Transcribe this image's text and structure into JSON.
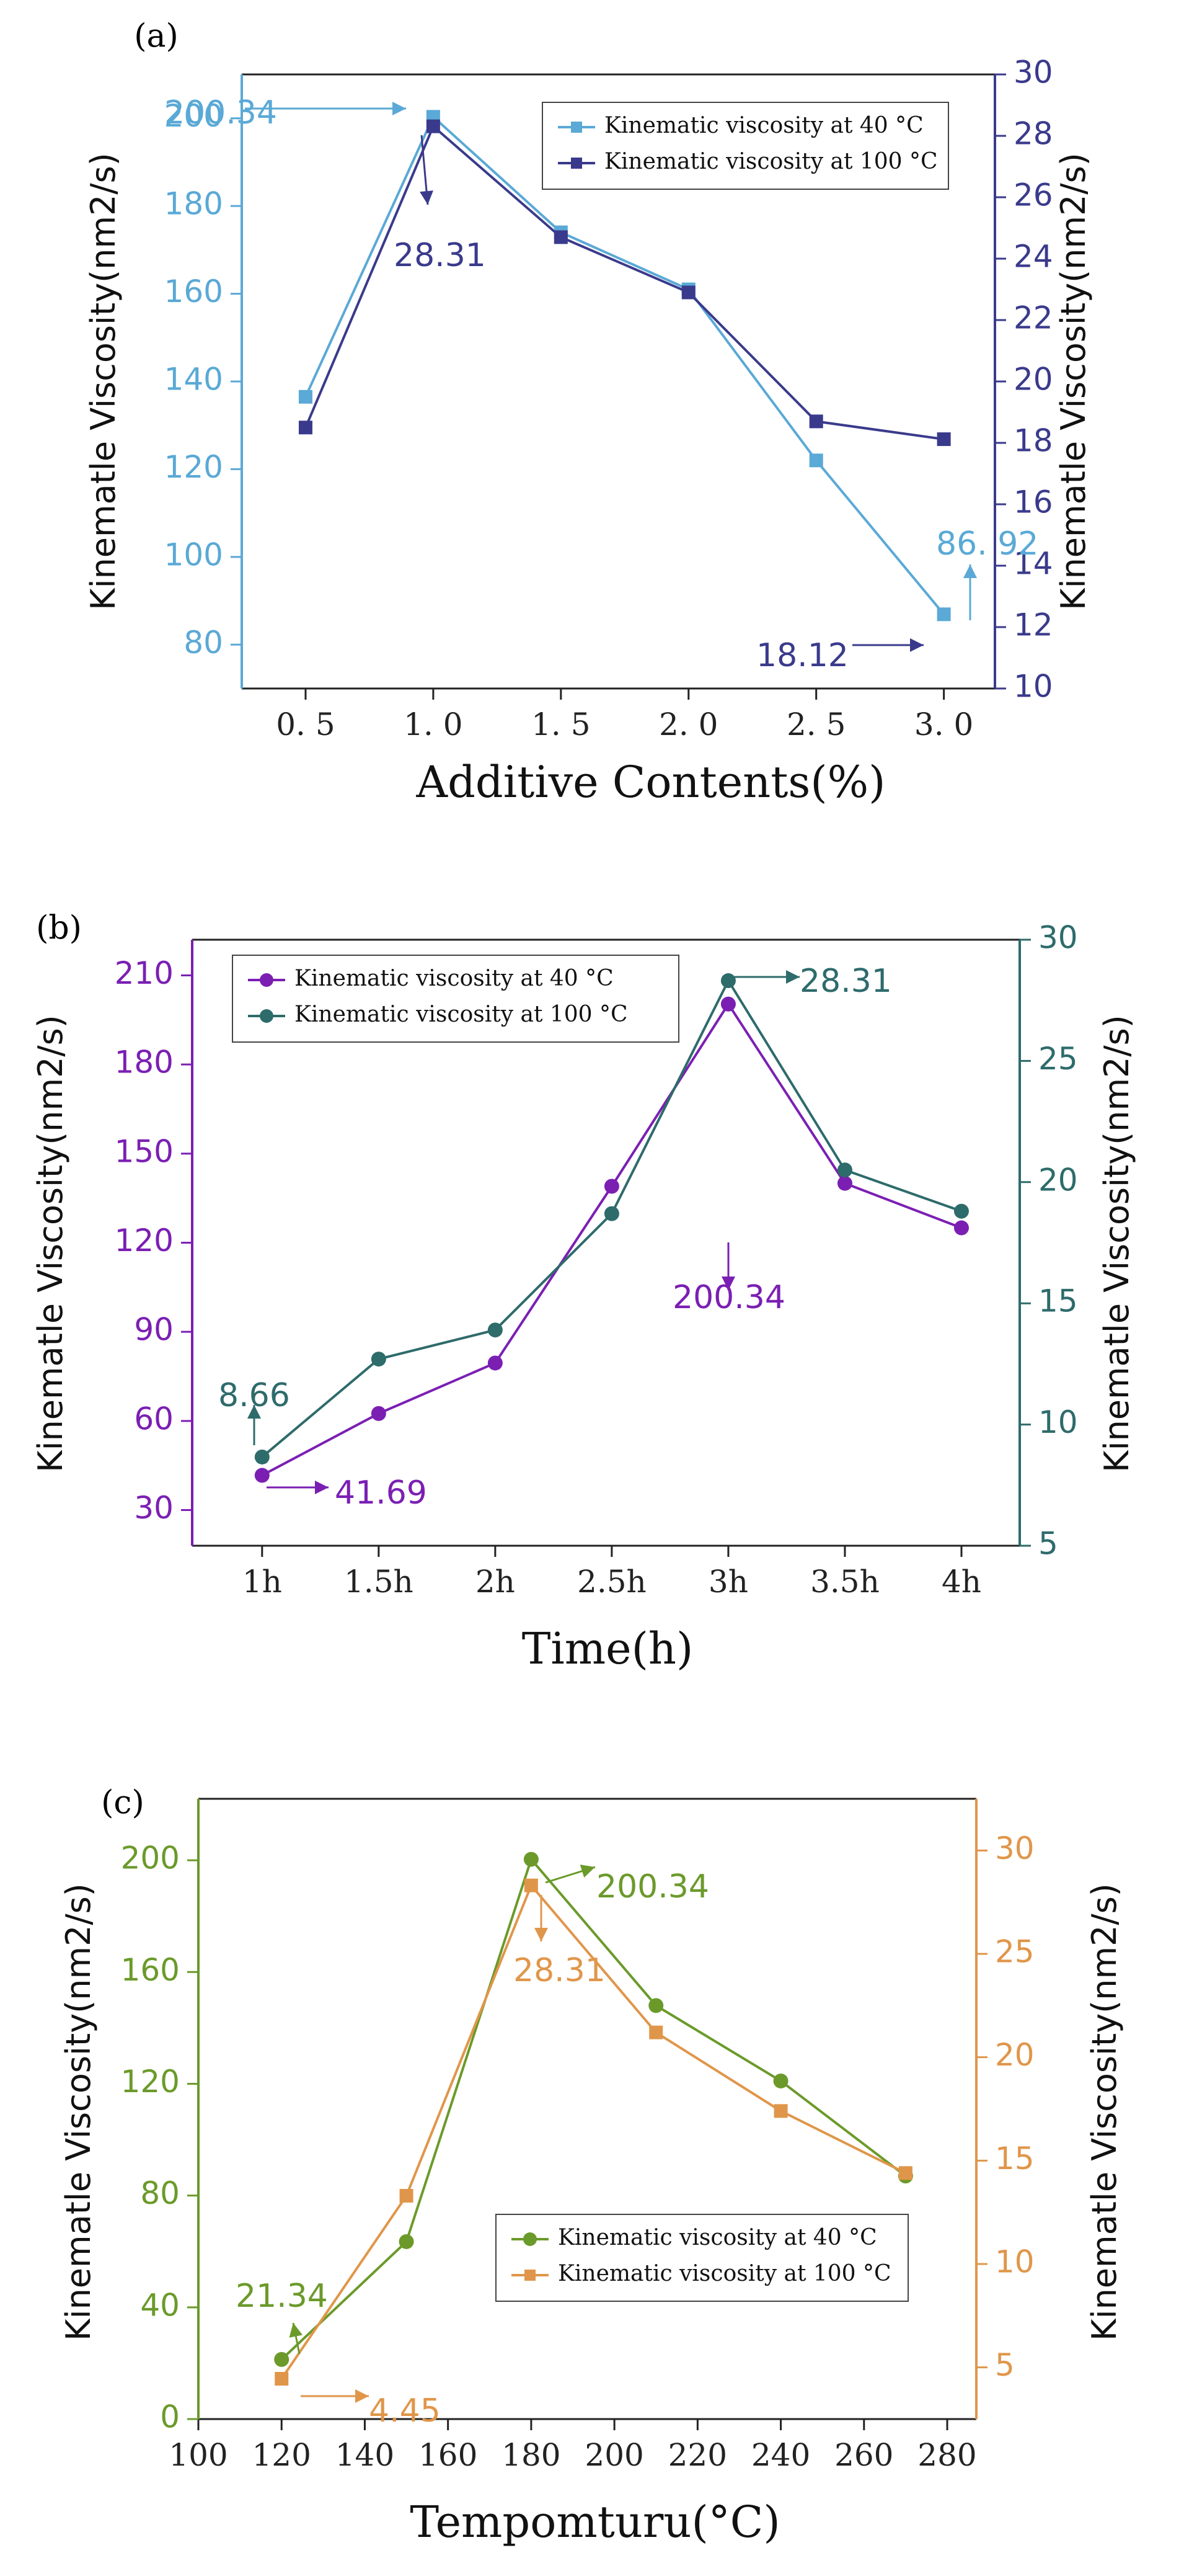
{
  "chart_data": [
    {
      "panel": "(a)",
      "type": "line",
      "xlabel": "Additive Contents(%)",
      "categories": [
        "0. 5",
        "1. 0",
        "1. 5",
        "2. 0",
        "2. 5",
        "3. 0"
      ],
      "x": [
        0.5,
        1.0,
        1.5,
        2.0,
        2.5,
        3.0
      ],
      "xlim": [
        0.25,
        3.2
      ],
      "ylabel_left": "Kinematle Viscosity(nm2/s)",
      "ylabel_right": "Kinematle Viscosity(nm2/s)",
      "ylim_left": [
        70,
        210
      ],
      "ylim_right": [
        10,
        30
      ],
      "yticks_left": [
        80,
        100,
        120,
        140,
        160,
        180,
        200
      ],
      "yticks_right": [
        10,
        12,
        14,
        16,
        18,
        20,
        22,
        24,
        26,
        28,
        30
      ],
      "left_color": "#5aa9d6",
      "right_color": "#3a3a8c",
      "series": [
        {
          "name": "Kinematic viscosity at 40 °C",
          "axis": "left",
          "marker": "square",
          "color": "#5aa9d6",
          "values": [
            136.5,
            200.34,
            174,
            161,
            122,
            86.92
          ]
        },
        {
          "name": "Kinematic viscosity at 100 °C",
          "axis": "right",
          "marker": "square",
          "color": "#3a3a8c",
          "values": [
            18.5,
            28.31,
            24.7,
            22.9,
            18.7,
            18.12
          ]
        }
      ],
      "legend_position": "top-right",
      "annotations": [
        "200.34",
        "28.31",
        "86. 92",
        "18.12"
      ]
    },
    {
      "panel": "(b)",
      "type": "line",
      "xlabel": "Time(h)",
      "categories": [
        "1h",
        "1.5h",
        "2h",
        "2.5h",
        "3h",
        "3.5h",
        "4h"
      ],
      "x": [
        1,
        1.5,
        2,
        2.5,
        3,
        3.5,
        4
      ],
      "xlim": [
        0.7,
        4.25
      ],
      "ylabel_left": "Kinematle Viscosity(nm2/s)",
      "ylabel_right": "Kinematle Viscosity(nm2/s)",
      "ylim_left": [
        18,
        222
      ],
      "ylim_right": [
        5,
        30
      ],
      "yticks_left": [
        30,
        60,
        90,
        120,
        150,
        180,
        210
      ],
      "yticks_right": [
        5,
        10,
        15,
        20,
        25,
        30
      ],
      "left_color": "#7b1fb3",
      "right_color": "#2e6b6b",
      "series": [
        {
          "name": "Kinematic viscosity at 40 °C",
          "axis": "left",
          "marker": "circle",
          "color": "#7b1fb3",
          "values": [
            41.69,
            62.5,
            79.5,
            139,
            200.34,
            140,
            125
          ]
        },
        {
          "name": "Kinematic viscosity at 100 °C",
          "axis": "right",
          "marker": "circle",
          "color": "#2e6b6b",
          "values": [
            8.66,
            12.7,
            13.9,
            18.7,
            28.31,
            20.5,
            18.8
          ]
        }
      ],
      "legend_position": "top-left",
      "annotations": [
        "8.66",
        "41.69",
        "200.34",
        "28.31"
      ]
    },
    {
      "panel": "(c)",
      "type": "line",
      "xlabel": "Tempomturu(°C)",
      "categories": [
        "100",
        "120",
        "140",
        "160",
        "180",
        "200",
        "220",
        "240",
        "260",
        "280"
      ],
      "x": [
        120,
        150,
        180,
        210,
        240,
        270
      ],
      "xlim": [
        100,
        287
      ],
      "ylabel_left": "Kinematle Viscosity(nm2/s)",
      "ylabel_right": "Kinematle Viscosity(nm2/s)",
      "ylim_left": [
        0,
        222
      ],
      "ylim_right": [
        2.5,
        32.5
      ],
      "yticks_left": [
        0,
        40,
        80,
        120,
        160,
        200
      ],
      "yticks_right": [
        5,
        10,
        15,
        20,
        25,
        30
      ],
      "left_color": "#6b9a2a",
      "right_color": "#e0964a",
      "series": [
        {
          "name": "Kinematic viscosity at 40 °C",
          "axis": "left",
          "marker": "circle",
          "color": "#6b9a2a",
          "values": [
            21.34,
            63.5,
            200.34,
            148,
            121,
            87
          ]
        },
        {
          "name": "Kinematic viscosity at 100 °C",
          "axis": "right",
          "marker": "square",
          "color": "#e0964a",
          "values": [
            4.45,
            13.3,
            28.31,
            21.2,
            17.4,
            14.4
          ]
        }
      ],
      "legend_position": "bottom-right",
      "annotations": [
        "200.34",
        "28.31",
        "21.34",
        "4.45"
      ]
    }
  ]
}
